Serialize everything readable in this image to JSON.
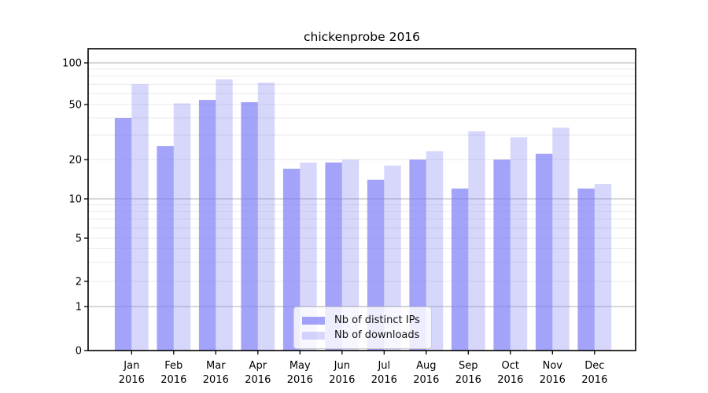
{
  "chart_data": {
    "type": "bar",
    "title": "chickenprobe 2016",
    "x_tick_months": [
      "Jan",
      "Feb",
      "Mar",
      "Apr",
      "May",
      "Jun",
      "Jul",
      "Aug",
      "Sep",
      "Oct",
      "Nov",
      "Dec"
    ],
    "x_tick_year": "2016",
    "series": [
      {
        "name": "Nb of distinct IPs",
        "values": [
          40,
          25,
          54,
          52,
          17,
          19,
          14,
          20,
          12,
          20,
          22,
          12
        ],
        "color": "rgba(124,124,246,0.70)"
      },
      {
        "name": "Nb of downloads",
        "values": [
          70,
          51,
          76,
          72,
          19,
          20,
          18,
          23,
          32,
          29,
          34,
          13
        ],
        "color": "rgba(124,124,246,0.30)"
      }
    ],
    "y_axis": {
      "scale": "log-like",
      "tick_labels": [
        "0",
        "1",
        "2",
        "5",
        "10",
        "20",
        "50",
        "100"
      ],
      "tick_values": [
        0,
        1,
        2,
        5,
        10,
        20,
        50,
        100
      ],
      "ylim": [
        0,
        125
      ]
    },
    "gridlines": {
      "on": true,
      "emphasized_values": [
        1,
        10,
        100
      ],
      "minor_values": [
        2,
        3,
        4,
        5,
        6,
        7,
        8,
        9,
        20,
        30,
        40,
        50,
        60,
        70,
        80,
        90
      ]
    },
    "legend": {
      "location": "lower center"
    },
    "colors": {
      "bar_base": "#7c7cf6",
      "grid_emphasized": "#b0b0b0",
      "grid_minor": "#e9e9e9",
      "axis": "#000000",
      "text": "#000000",
      "background": "#ffffff"
    }
  }
}
